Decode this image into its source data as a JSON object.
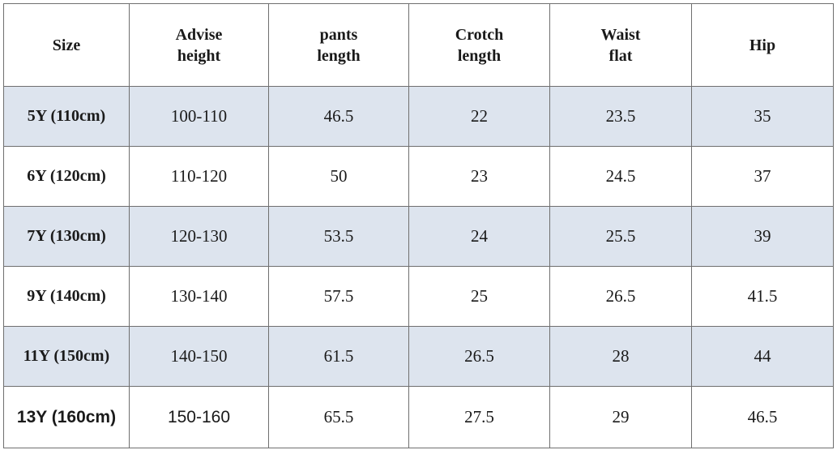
{
  "table": {
    "headers": [
      [
        "Size"
      ],
      [
        "Advise",
        "height"
      ],
      [
        "pants",
        "length"
      ],
      [
        "Crotch",
        "length"
      ],
      [
        "Waist",
        "flat"
      ],
      [
        "Hip"
      ]
    ],
    "rows": [
      [
        "5Y (110cm)",
        "100-110",
        "46.5",
        "22",
        "23.5",
        "35"
      ],
      [
        "6Y (120cm)",
        "110-120",
        "50",
        "23",
        "24.5",
        "37"
      ],
      [
        "7Y (130cm)",
        "120-130",
        "53.5",
        "24",
        "25.5",
        "39"
      ],
      [
        "9Y (140cm)",
        "130-140",
        "57.5",
        "25",
        "26.5",
        "41.5"
      ],
      [
        "11Y (150cm)",
        "140-150",
        "61.5",
        "26.5",
        "28",
        "44"
      ],
      [
        "13Y (160cm)",
        "150-160",
        "65.5",
        "27.5",
        "29",
        "46.5"
      ]
    ],
    "shaded_color": "#dde4ee",
    "border_color": "#6f6f6f"
  }
}
